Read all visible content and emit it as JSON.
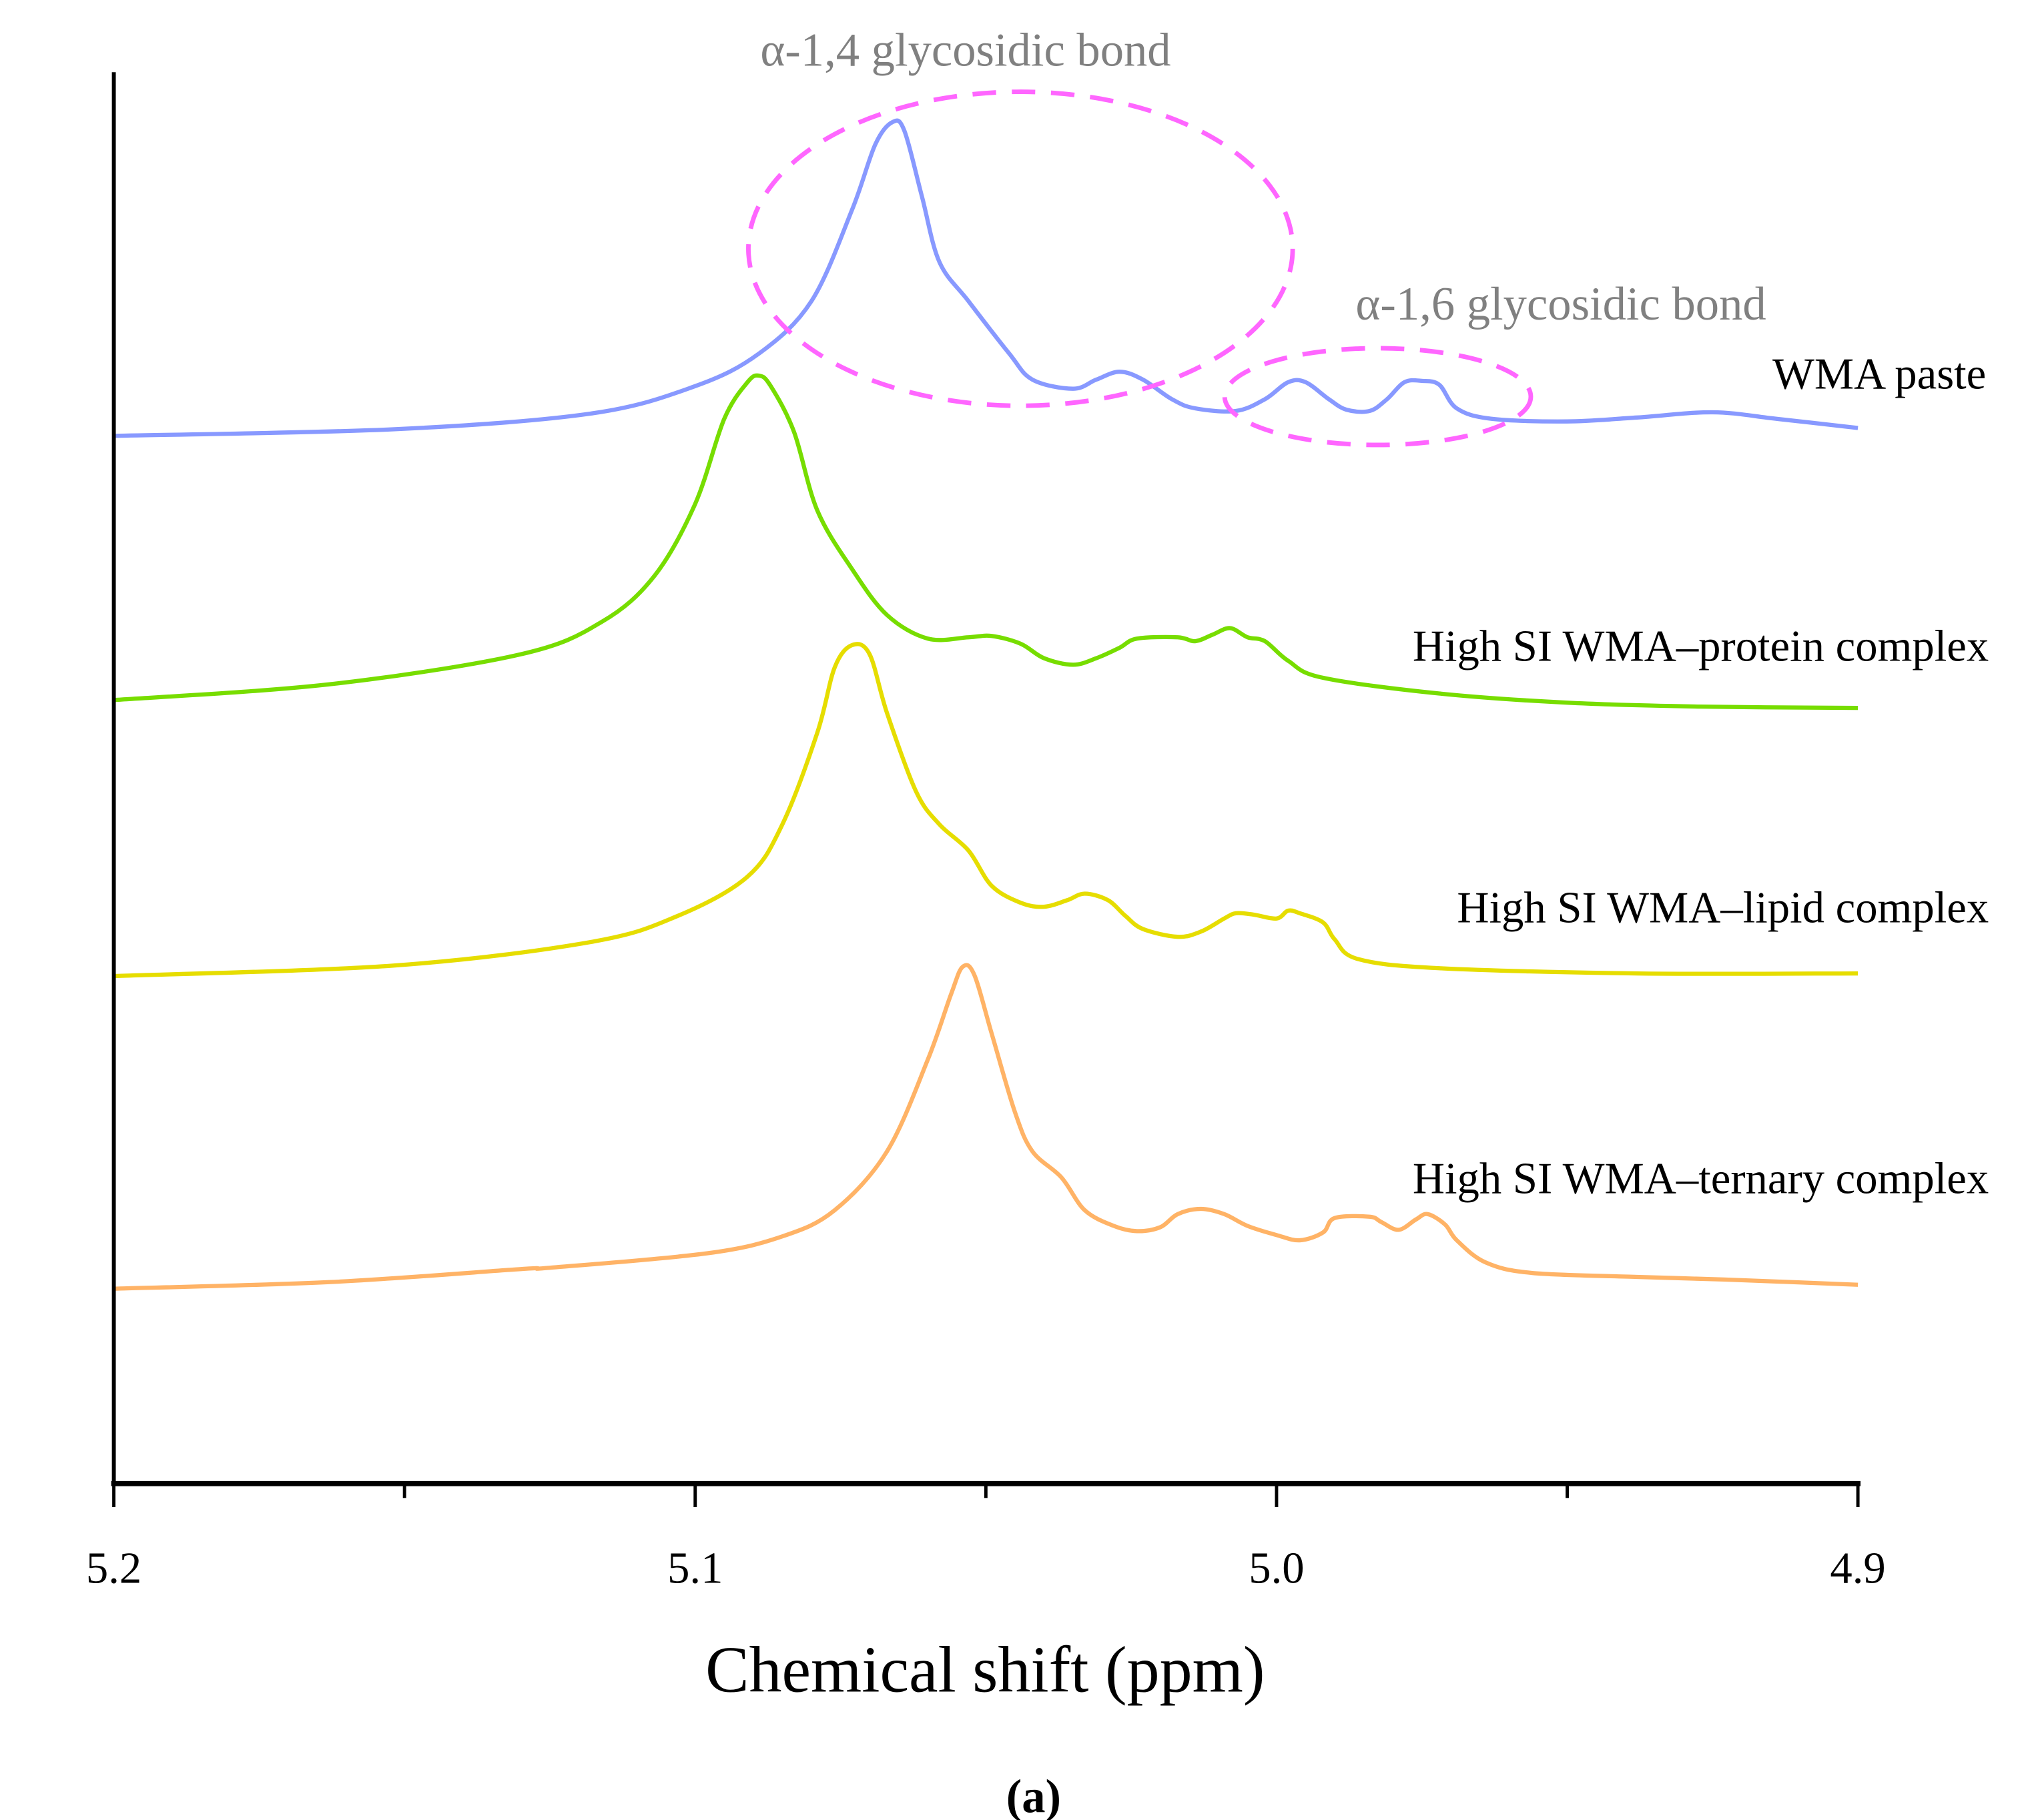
{
  "chart_data": {
    "type": "line",
    "title": "",
    "xlabel": "Chemical shift (ppm)",
    "ylabel": "",
    "panel_label": "(a)",
    "xlim": [
      5.2,
      4.9
    ],
    "ylim": [
      0,
      1080
    ],
    "x_ticks": [
      "5.2",
      "5.1",
      "5.0",
      "4.9"
    ],
    "x_tick_values": [
      5.2,
      5.1,
      5.0,
      4.9
    ],
    "x_minor_ticks": [
      5.15,
      5.05,
      4.95
    ],
    "grid": false,
    "annotations": [
      {
        "text": "α-1,4 glycosidic bond",
        "color": "#808080",
        "circle_color": "#ff66ff"
      },
      {
        "text": "α-1,6 glycosidic bond",
        "color": "#808080",
        "circle_color": "#ff66ff"
      }
    ],
    "series": [
      {
        "name": "WMA paste",
        "color": "#8899ff",
        "x": [
          5.2,
          5.152,
          5.118,
          5.1,
          5.089,
          5.08,
          5.073,
          5.069,
          5.066,
          5.064,
          5.061,
          5.058,
          5.053,
          5.046,
          5.042,
          5.035,
          5.031,
          5.027,
          5.023,
          5.018,
          5.014,
          5.007,
          5.002,
          4.998,
          4.995,
          4.991,
          4.988,
          4.984,
          4.981,
          4.978,
          4.975,
          4.972,
          4.969,
          4.963,
          4.95,
          4.938,
          4.925,
          4.914,
          4.9
        ],
        "y": [
          800,
          805,
          817,
          838,
          863,
          903,
          973,
          1023,
          1040,
          1033,
          983,
          933,
          903,
          863,
          843,
          836,
          843,
          849,
          843,
          828,
          821,
          819,
          828,
          841,
          841,
          828,
          820,
          819,
          828,
          841,
          842,
          839,
          821,
          813,
          811,
          814,
          818,
          813,
          806
        ]
      },
      {
        "name": "High SI WMA–protein complex",
        "color": "#77dd00",
        "x": [
          5.2,
          5.163,
          5.13,
          5.116,
          5.107,
          5.1,
          5.095,
          5.091,
          5.089,
          5.087,
          5.083,
          5.079,
          5.073,
          5.067,
          5.06,
          5.053,
          5.049,
          5.044,
          5.04,
          5.035,
          5.031,
          5.027,
          5.024,
          5.017,
          5.014,
          5.011,
          5.008,
          5.005,
          5.002,
          4.998,
          4.992,
          4.972,
          4.95,
          4.927,
          4.9
        ],
        "y": [
          598,
          610,
          633,
          658,
          693,
          748,
          813,
          841,
          846,
          838,
          803,
          743,
          698,
          663,
          645,
          646,
          647,
          641,
          630,
          625,
          630,
          638,
          645,
          646,
          643,
          648,
          653,
          646,
          643,
          628,
          615,
          603,
          596,
          593,
          592
        ]
      },
      {
        "name": "High SI WMA–lipid complex",
        "color": "#e6dd00",
        "x": [
          5.2,
          5.152,
          5.118,
          5.103,
          5.091,
          5.085,
          5.079,
          5.076,
          5.073,
          5.07,
          5.067,
          5.062,
          5.058,
          5.053,
          5.049,
          5.044,
          5.04,
          5.036,
          5.033,
          5.029,
          5.026,
          5.023,
          5.017,
          5.013,
          5.009,
          5.007,
          5.004,
          5.0,
          4.998,
          4.996,
          4.992,
          4.99,
          4.986,
          4.972,
          4.938,
          4.9
        ],
        "y": [
          387,
          395,
          413,
          433,
          463,
          503,
          573,
          623,
          640,
          633,
          588,
          528,
          503,
          483,
          456,
          443,
          440,
          445,
          450,
          445,
          433,
          423,
          417,
          421,
          431,
          435,
          434,
          431,
          437,
          435,
          428,
          415,
          400,
          393,
          389,
          389
        ]
      },
      {
        "name": "High SI WMA–ternary complex",
        "color": "#ffb366",
        "x": [
          5.2,
          5.163,
          5.13,
          5.125,
          5.098,
          5.085,
          5.076,
          5.067,
          5.06,
          5.056,
          5.054,
          5.052,
          5.049,
          5.045,
          5.042,
          5.037,
          5.033,
          5.028,
          5.024,
          5.02,
          5.017,
          5.013,
          5.009,
          5.005,
          5.0,
          4.996,
          4.992,
          4.99,
          4.984,
          4.982,
          4.979,
          4.976,
          4.974,
          4.971,
          4.969,
          4.964,
          4.956,
          4.938,
          4.923,
          4.9
        ],
        "y": [
          148,
          153,
          163,
          164,
          175,
          188,
          208,
          253,
          323,
          373,
          394,
          388,
          343,
          283,
          253,
          233,
          208,
          196,
          192,
          195,
          205,
          209,
          205,
          196,
          189,
          185,
          191,
          202,
          203,
          199,
          193,
          201,
          205,
          197,
          185,
          168,
          160,
          157,
          155,
          151
        ]
      }
    ]
  }
}
